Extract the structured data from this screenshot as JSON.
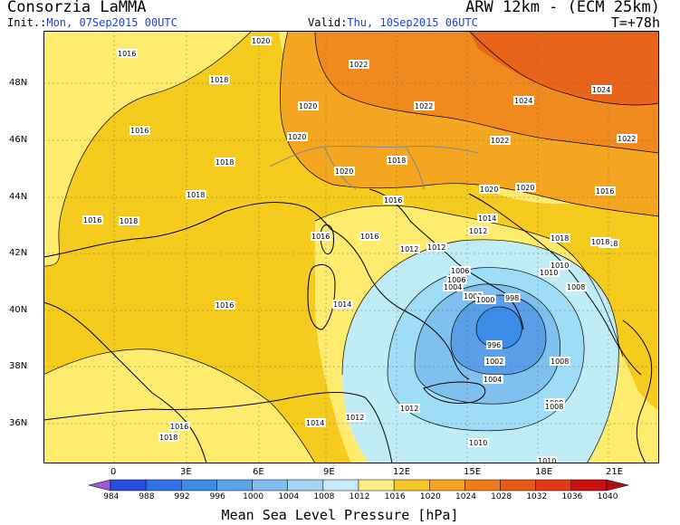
{
  "header": {
    "title": "Consorzia LaMMA",
    "model": "ARW 12km - (ECM 25km)",
    "init_label": "Init.:",
    "init_value": "Mon, 07Sep2015 00UTC",
    "valid_label": "Valid:",
    "valid_value": "Thu, 10Sep2015 06UTC",
    "step": "T=+78h"
  },
  "map": {
    "lat_labels": [
      "48N",
      "46N",
      "44N",
      "42N",
      "40N",
      "38N",
      "36N"
    ],
    "lon_labels": [
      "0",
      "3E",
      "6E",
      "9E",
      "12E",
      "15E",
      "18E",
      "21E"
    ],
    "isobar_labels": [
      "1020",
      "1016",
      "1018",
      "1022",
      "1020",
      "1022",
      "1024",
      "1024",
      "1022",
      "1022",
      "1016",
      "1020",
      "1018",
      "1020",
      "1018",
      "1018",
      "1020",
      "1020",
      "1016",
      "1016",
      "1016",
      "1018",
      "1016",
      "1016",
      "1014",
      "1012",
      "1018",
      "1018",
      "1012",
      "1010",
      "1008",
      "1006",
      "1004",
      "1002",
      "1000",
      "998",
      "996",
      "1002",
      "1004",
      "1006",
      "1008",
      "1010",
      "1008",
      "1010",
      "1018",
      "1014",
      "1014",
      "1012",
      "1016",
      "1016",
      "1012",
      "1008",
      "1018",
      "1012",
      "1010"
    ],
    "colors": {
      "land_ocean_1016": "#ffeb6e",
      "band_1018": "#f5cb1e",
      "band_1020": "#f5a620",
      "band_1022": "#f08a1e",
      "band_1024": "#e8641a",
      "low_1012": "#bfecf5",
      "low_1008": "#9fdcf5",
      "low_1004": "#7fc0ee",
      "low_1000": "#5a9fe8",
      "coast": "#000000",
      "border": "#888888"
    }
  },
  "legend": {
    "values": [
      "984",
      "988",
      "992",
      "996",
      "1000",
      "1004",
      "1008",
      "1012",
      "1016",
      "1020",
      "1024",
      "1028",
      "1032",
      "1036",
      "1040"
    ],
    "colors": [
      "#9b59d6",
      "#2a4fe0",
      "#2f6fe8",
      "#3c8ce8",
      "#5aa4ec",
      "#80bcf0",
      "#a6d4f5",
      "#c6e8f8",
      "#ffee86",
      "#f7c72a",
      "#f5a220",
      "#ef7c1b",
      "#e85b16",
      "#e03a12",
      "#cc1010",
      "#b01010"
    ],
    "title": "Mean Sea Level Pressure [hPa]"
  }
}
